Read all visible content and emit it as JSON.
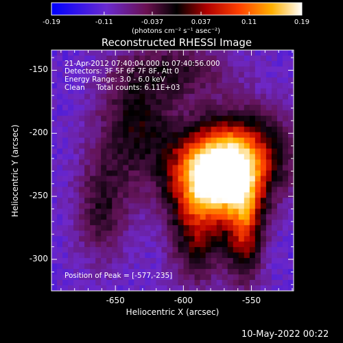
{
  "chart_data": {
    "type": "heatmap",
    "title": "Reconstructed RHESSI Image",
    "xlabel": "Heliocentric X (arcsec)",
    "ylabel": "Heliocentric Y (arcsec)",
    "xlim": [
      -697,
      -519
    ],
    "ylim": [
      -325,
      -134
    ],
    "x_ticks": [
      -650,
      -600,
      -550
    ],
    "x_tick_labels": [
      "-650",
      "-600",
      "-550"
    ],
    "y_ticks": [
      -150,
      -200,
      -250,
      -300
    ],
    "y_tick_labels": [
      "-150",
      "-200",
      "-250",
      "-300"
    ],
    "colorbar": {
      "range": [
        -0.19,
        0.19
      ],
      "ticks": [
        -0.19,
        -0.11,
        -0.037,
        0.037,
        0.11,
        0.19
      ],
      "tick_labels": [
        "-0.19",
        "-0.11",
        "-0.037",
        "0.037",
        "0.11",
        "0.19"
      ],
      "units_label": "(photons cm⁻² s⁻¹ asec⁻²)",
      "colors": [
        "#0000ff",
        "#7b2fbe",
        "#7a1040",
        "#000000",
        "#c00000",
        "#ff5000",
        "#ffb000",
        "#ffffff"
      ]
    },
    "annotations": {
      "time_range": "21-Apr-2012 07:40:04.000 to 07:40:56.000",
      "detectors": "Detectors: 3F 5F 6F 7F 8F, Att 0",
      "energy_range": "Energy Range: 3.0 - 6.0 keV",
      "clean_counts": "Clean     Total counts: 6.11E+03",
      "peak": "Position of Peak = [-577,-235]"
    },
    "peak_position": [
      -577,
      -235
    ]
  },
  "footer": {
    "date": "10-May-2022 00:22"
  }
}
